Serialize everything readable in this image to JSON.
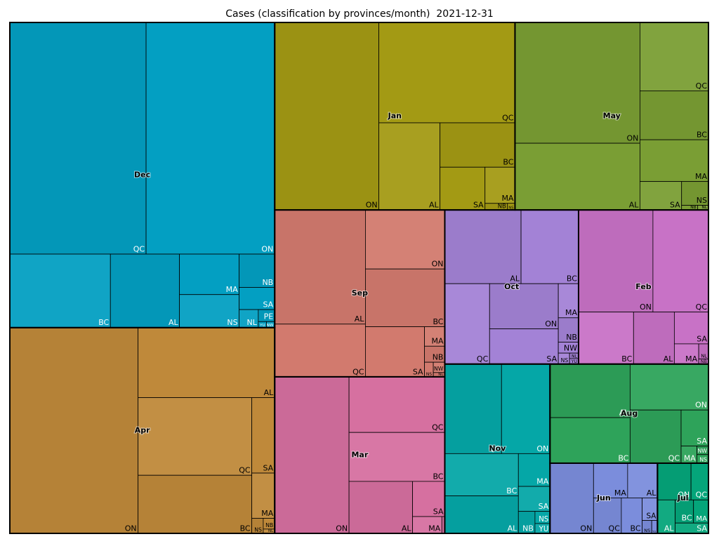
{
  "chart_data": {
    "type": "treemap",
    "title": "Cases (classification by provinces/month)  2021-12-31",
    "series": [
      {
        "name": "Dec",
        "color": "#039fc2",
        "categories": [
          "QC",
          "ON",
          "BC",
          "AL",
          "MA",
          "NS",
          "NB",
          "SA",
          "NL",
          "PE",
          "YU",
          "NW"
        ],
        "values": [
          64.0,
          60.4,
          15.0,
          10.3,
          4.9,
          4.0,
          2.4,
          1.6,
          0.7,
          0.4,
          0.1,
          0.1
        ]
      },
      {
        "name": "Apr",
        "color": "#bf893a",
        "categories": [
          "ON",
          "AL",
          "QC",
          "BC",
          "SA",
          "MA",
          "NS",
          "NB",
          "NL"
        ],
        "values": [
          53.5,
          19.4,
          17.9,
          13.4,
          3.5,
          2.1,
          0.35,
          0.25,
          0.1
        ]
      },
      {
        "name": "Jan",
        "color": "#a39a14",
        "categories": [
          "ON",
          "QC",
          "AL",
          "BC",
          "SA",
          "MA",
          "NB",
          "NS"
        ],
        "values": [
          39.6,
          27.7,
          10.8,
          6.75,
          3.9,
          2.2,
          0.3,
          0.1
        ]
      },
      {
        "name": "May",
        "color": "#7a9e34",
        "categories": [
          "ON",
          "AL",
          "QC",
          "BC",
          "MA",
          "SA",
          "NS",
          "NB",
          "NL"
        ],
        "values": [
          30.6,
          16.9,
          9.5,
          6.8,
          5.8,
          2.4,
          1.3,
          0.15,
          0.1
        ]
      },
      {
        "name": "Sep",
        "color": "#d27a6e",
        "categories": [
          "AL",
          "QC",
          "ON",
          "BC",
          "SA",
          "MA",
          "NB",
          "NS",
          "NW",
          "NL"
        ],
        "values": [
          21.0,
          9.7,
          9.5,
          9.3,
          6.0,
          0.8,
          0.66,
          0.26,
          0.24,
          0.1
        ]
      },
      {
        "name": "Mar",
        "color": "#d670a0",
        "categories": [
          "ON",
          "QC",
          "BC",
          "AL",
          "SA",
          "MA",
          "NB"
        ],
        "values": [
          23.6,
          10.8,
          9.5,
          6.7,
          2.3,
          1.0,
          0.1
        ]
      },
      {
        "name": "Oct",
        "color": "#a382d6",
        "categories": [
          "AL",
          "BC",
          "QC",
          "ON",
          "SA",
          "MA",
          "NB",
          "NW",
          "NS",
          "NL",
          "YU"
        ],
        "values": [
          11.4,
          8.6,
          7.3,
          6.3,
          4.9,
          1.4,
          1.0,
          0.45,
          0.25,
          0.1,
          0.1
        ]
      },
      {
        "name": "Feb",
        "color": "#c872c6",
        "categories": [
          "ON",
          "QC",
          "BC",
          "AL",
          "SA",
          "MA",
          "NL",
          "NB"
        ],
        "values": [
          15.4,
          11.5,
          5.8,
          4.3,
          2.2,
          1.0,
          0.3,
          0.1
        ]
      },
      {
        "name": "Nov",
        "color": "#05a7a7",
        "categories": [
          "QC",
          "ON",
          "BC",
          "AL",
          "MA",
          "SA",
          "NB",
          "NS",
          "YU"
        ],
        "values": [
          10.3,
          8.8,
          6.3,
          5.6,
          2.1,
          1.6,
          0.74,
          0.37,
          0.3
        ]
      },
      {
        "name": "Aug",
        "color": "#2ea35a",
        "categories": [
          "AL",
          "BC",
          "ON",
          "QC",
          "SA",
          "MA",
          "NW",
          "NS"
        ],
        "values": [
          8.7,
          7.4,
          7.3,
          5.5,
          2.0,
          0.55,
          0.2,
          0.2
        ]
      },
      {
        "name": "Jun",
        "color": "#7b8ddc",
        "categories": [
          "ON",
          "MA",
          "AL",
          "QC",
          "BC",
          "SA",
          "NS",
          "YU"
        ],
        "values": [
          6.2,
          2.4,
          2.1,
          2.0,
          1.5,
          0.7,
          0.25,
          0.15
        ]
      },
      {
        "name": "Jul",
        "color": "#05a57a",
        "categories": [
          "ON",
          "QC",
          "AL",
          "BC",
          "MA",
          "SA"
        ],
        "values": [
          2.5,
          1.3,
          1.2,
          0.86,
          0.7,
          0.7
        ]
      }
    ]
  }
}
